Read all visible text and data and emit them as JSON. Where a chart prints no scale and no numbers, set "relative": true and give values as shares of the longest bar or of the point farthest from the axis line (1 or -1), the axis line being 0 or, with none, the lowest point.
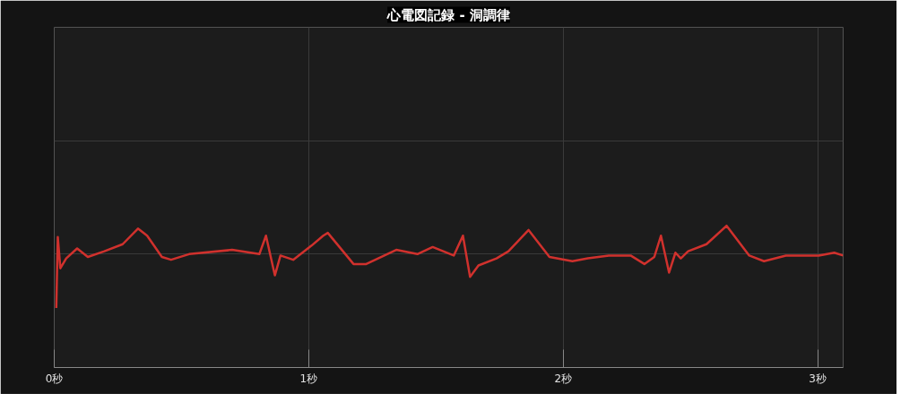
{
  "chart_data": {
    "type": "line",
    "title": "心電図記録 - 洞調律",
    "relative": true,
    "grid": true,
    "x": [
      0.008,
      0.014,
      0.024,
      0.047,
      0.09,
      0.132,
      0.197,
      0.269,
      0.329,
      0.365,
      0.423,
      0.459,
      0.53,
      0.699,
      0.806,
      0.832,
      0.867,
      0.889,
      0.939,
      1.011,
      1.057,
      1.075,
      1.176,
      1.226,
      1.344,
      1.427,
      1.487,
      1.57,
      1.606,
      1.634,
      1.667,
      1.738,
      1.785,
      1.864,
      1.946,
      2.036,
      2.097,
      2.179,
      2.265,
      2.319,
      2.358,
      2.384,
      2.416,
      2.441,
      2.462,
      2.491,
      2.563,
      2.642,
      2.731,
      2.789,
      2.875,
      3.004,
      3.065,
      3.1
    ],
    "series": [
      {
        "color": "#d0312d",
        "values": [
          0.42,
          0.92,
          0.7,
          0.77,
          0.84,
          0.78,
          0.82,
          0.87,
          0.98,
          0.93,
          0.78,
          0.76,
          0.8,
          0.83,
          0.8,
          0.93,
          0.65,
          0.79,
          0.76,
          0.86,
          0.93,
          0.95,
          0.73,
          0.73,
          0.83,
          0.8,
          0.85,
          0.79,
          0.93,
          0.64,
          0.72,
          0.77,
          0.82,
          0.97,
          0.78,
          0.75,
          0.77,
          0.79,
          0.79,
          0.73,
          0.78,
          0.93,
          0.67,
          0.81,
          0.77,
          0.82,
          0.87,
          1.0,
          0.79,
          0.75,
          0.79,
          0.79,
          0.81,
          0.79
        ]
      }
    ],
    "xlim": [
      0,
      3.1
    ],
    "xticks": [
      {
        "value": 0,
        "label": "0秒"
      },
      {
        "value": 1,
        "label": "1秒"
      },
      {
        "value": 2,
        "label": "2秒"
      },
      {
        "value": 3,
        "label": "3秒"
      }
    ]
  }
}
